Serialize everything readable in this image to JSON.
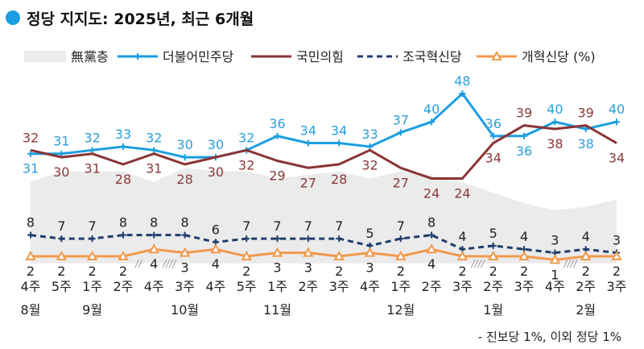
{
  "chart_data": {
    "type": "line",
    "title": "정당 지지도: 2025년, 최근 6개월",
    "title_marker_color": "#1a9ee0",
    "x_week_labels": [
      "4주",
      "5주",
      "1주",
      "2주",
      "4주",
      "3주",
      "4주",
      "5주",
      "1주",
      "2주",
      "3주",
      "4주",
      "1주",
      "2주",
      "3주",
      "2주",
      "3주",
      "4주",
      "2주",
      "3주"
    ],
    "month_labels": [
      {
        "label": "8월",
        "index": 0
      },
      {
        "label": "9월",
        "index": 2
      },
      {
        "label": "10월",
        "index": 5
      },
      {
        "label": "11월",
        "index": 8
      },
      {
        "label": "12월",
        "index": 12
      },
      {
        "label": "1월",
        "index": 15
      },
      {
        "label": "2월",
        "index": 18
      }
    ],
    "ylim": [
      0,
      50
    ],
    "series": [
      {
        "name": "無黨층",
        "type": "area",
        "color": "#ebebeb",
        "values": [
          23,
          26,
          26,
          26,
          23,
          27,
          26,
          26,
          24,
          25,
          26,
          24,
          26,
          25,
          23,
          20,
          17,
          15,
          16,
          18
        ]
      },
      {
        "name": "더불어민주당",
        "color": "#1a9ee0",
        "label_color": "#2a9fdb",
        "values": [
          31,
          31,
          32,
          33,
          32,
          30,
          30,
          32,
          36,
          34,
          34,
          33,
          37,
          40,
          48,
          36,
          36,
          40,
          38,
          40
        ]
      },
      {
        "name": "국민의힘",
        "color": "#8a3434",
        "label_color": "#8a3a3a",
        "values": [
          32,
          30,
          31,
          28,
          31,
          28,
          30,
          32,
          29,
          27,
          28,
          32,
          27,
          24,
          24,
          34,
          39,
          38,
          39,
          34
        ]
      },
      {
        "name": "조국혁신당",
        "color": "#1f3d6b",
        "label_color": "#222222",
        "values": [
          8,
          7,
          7,
          8,
          8,
          8,
          6,
          7,
          7,
          7,
          7,
          5,
          7,
          8,
          4,
          5,
          4,
          3,
          4,
          3
        ]
      },
      {
        "name": "개혁신당 (%)",
        "color": "#f09a4c",
        "label_color": "#222222",
        "values": [
          2,
          2,
          2,
          2,
          4,
          3,
          4,
          2,
          3,
          3,
          2,
          3,
          2,
          4,
          2,
          2,
          2,
          1,
          2,
          2
        ]
      }
    ],
    "break_marks": [
      {
        "after_index": 3,
        "mark": "//"
      },
      {
        "after_index": 4,
        "mark": "////"
      },
      {
        "after_index": 14,
        "mark": "////"
      },
      {
        "after_index": 17,
        "mark": "////"
      }
    ],
    "footnote": "- 진보당 1%, 이외 정당 1%"
  }
}
